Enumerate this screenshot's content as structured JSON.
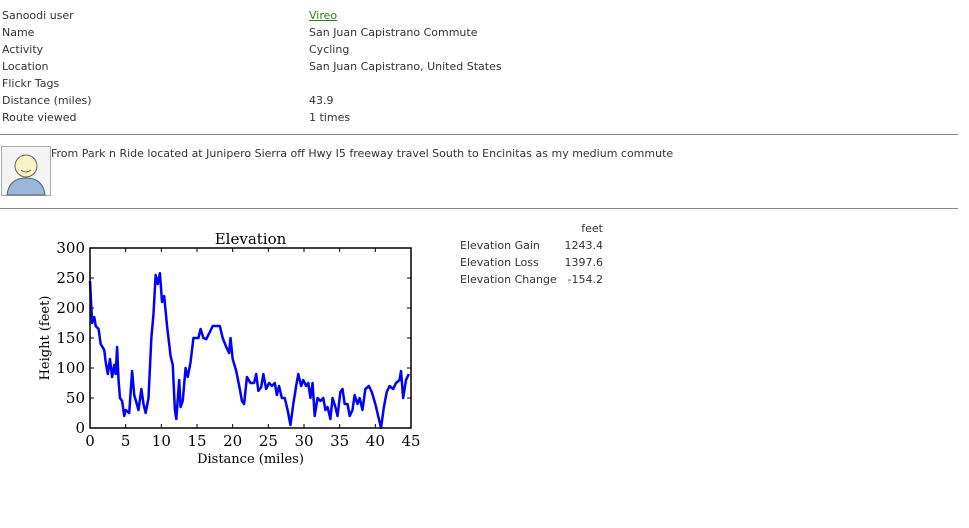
{
  "details": [
    {
      "label": "Sanoodi user",
      "value": "Vireo"
    },
    {
      "label": "Name",
      "value": "San Juan Capistrano Commute"
    },
    {
      "label": "Activity",
      "value": "Cycling"
    },
    {
      "label": "Location",
      "value": "San Juan Capistrano, United States"
    },
    {
      "label": "Flickr Tags"
    },
    {
      "label": "Distance (miles)",
      "value": "43.9"
    },
    {
      "label": "Route viewed",
      "value": "1 times"
    }
  ],
  "description": "From Park n Ride located at Junipero Sierra off Hwy I5 freeway travel South to Encinitas as my medium commute",
  "chart_data": {
    "type": "line",
    "title": "Elevation",
    "x_label": "Distance (miles)",
    "y_label": "Height (feet)",
    "color": "#0000ff",
    "x": [
      0,
      0.3,
      0.6,
      0.8,
      1.2,
      1.5,
      2,
      2.2,
      2.5,
      2.8,
      3.1,
      3.4,
      3.6,
      3.8,
      4,
      4.2,
      4.5,
      4.8,
      5,
      5.5,
      5.9,
      6.2,
      6.8,
      7.2,
      7.5,
      7.8,
      8.2,
      8.6,
      8.9,
      9.2,
      9.5,
      9.8,
      10.1,
      10.4,
      10.8,
      11.3,
      11.6,
      11.9,
      12.1,
      12.5,
      12.7,
      13,
      13.4,
      13.7,
      14.1,
      14.5,
      15.2,
      15.5,
      15.9,
      16.3,
      16.8,
      17.2,
      18.2,
      18.6,
      19.1,
      19.5,
      19.7,
      20,
      20.5,
      21,
      21.3,
      21.6,
      22,
      22.5,
      23,
      23.3,
      23.6,
      24,
      24.3,
      24.7,
      25.1,
      25.5,
      25.9,
      26.2,
      26.5,
      26.9,
      27.3,
      27.7,
      28.1,
      28.5,
      28.9,
      29.2,
      29.6,
      29.9,
      30.3,
      30.6,
      30.9,
      31.2,
      31.5,
      31.9,
      32.3,
      32.7,
      33,
      33.3,
      33.7,
      34,
      34.4,
      34.7,
      35.1,
      35.4,
      35.7,
      36.1,
      36.4,
      36.8,
      37.1,
      37.5,
      37.8,
      38.2,
      38.6,
      39.1,
      39.5,
      40,
      40.5,
      40.8,
      41.2,
      41.6,
      42,
      42.5,
      42.9,
      43.4,
      43.6,
      43.9,
      44.3,
      44.7
    ],
    "values": [
      245,
      175,
      185,
      170,
      165,
      140,
      130,
      110,
      90,
      115,
      85,
      105,
      90,
      135,
      80,
      50,
      45,
      20,
      30,
      25,
      95,
      55,
      30,
      65,
      40,
      25,
      50,
      150,
      190,
      255,
      240,
      258,
      210,
      220,
      170,
      120,
      105,
      30,
      15,
      80,
      35,
      45,
      100,
      85,
      110,
      150,
      150,
      165,
      150,
      148,
      160,
      170,
      170,
      150,
      135,
      125,
      150,
      115,
      95,
      65,
      45,
      40,
      85,
      75,
      75,
      90,
      62,
      68,
      90,
      65,
      75,
      70,
      75,
      55,
      70,
      50,
      50,
      30,
      5,
      40,
      70,
      90,
      70,
      80,
      70,
      75,
      50,
      75,
      20,
      50,
      45,
      50,
      30,
      35,
      15,
      50,
      35,
      20,
      60,
      65,
      40,
      40,
      20,
      30,
      55,
      40,
      50,
      30,
      65,
      70,
      60,
      40,
      15,
      0,
      35,
      60,
      70,
      65,
      75,
      80,
      95,
      50,
      80,
      90
    ],
    "xlim": [
      0,
      45
    ],
    "ylim": [
      0,
      300
    ],
    "xticks": [
      0,
      5,
      10,
      15,
      20,
      25,
      30,
      35,
      40,
      45
    ],
    "yticks": [
      0,
      50,
      100,
      150,
      200,
      250,
      300
    ]
  },
  "stats": {
    "header": "feet",
    "rows": [
      {
        "label": "Elevation Gain",
        "value": 1243.4
      },
      {
        "label": "Elevation Loss",
        "value": 1397.6
      },
      {
        "label": "Elevation Change",
        "value": -154.2
      }
    ]
  }
}
